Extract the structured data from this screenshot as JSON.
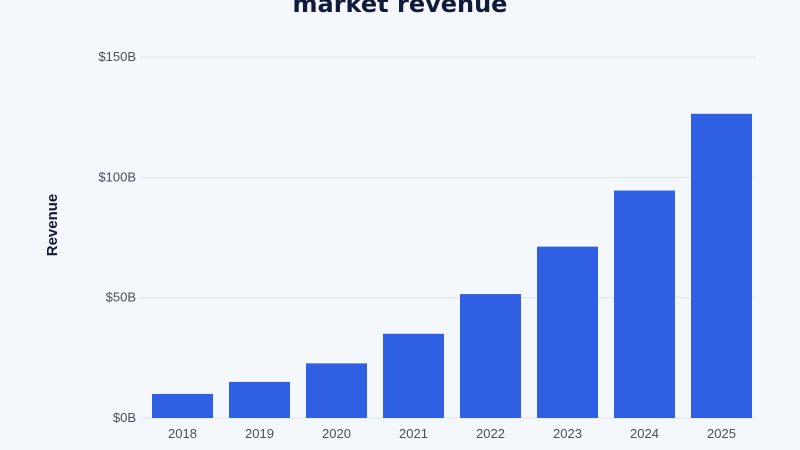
{
  "chart_data": {
    "type": "bar",
    "title": "market revenue",
    "xlabel": "",
    "ylabel": "Revenue",
    "categories": [
      "2018",
      "2019",
      "2020",
      "2021",
      "2022",
      "2023",
      "2024",
      "2025"
    ],
    "values": [
      10,
      15,
      22.7,
      35,
      51.5,
      71.2,
      94.5,
      126.4
    ],
    "value_unit": "B USD",
    "ylim": [
      0,
      150
    ],
    "yticks": [
      0,
      50,
      100,
      150
    ],
    "ytick_labels": [
      "$0B",
      "$50B",
      "$100B",
      "$150B"
    ],
    "grid": true,
    "legend": "none",
    "bar_color": "#2f5fe3"
  }
}
